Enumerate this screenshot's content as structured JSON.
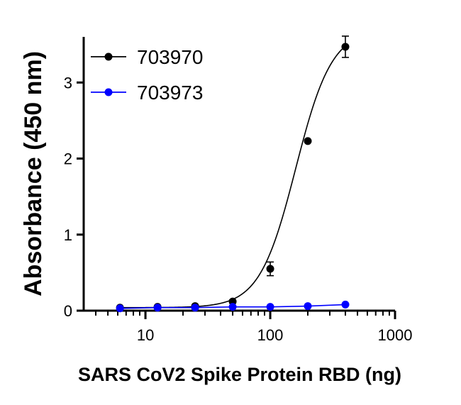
{
  "chart_data": {
    "type": "scatter",
    "xlabel": "SARS CoV2 Spike Protein RBD (ng)",
    "ylabel": "Absorbance (450 nm)",
    "xscale": "log",
    "xlim": [
      3.2,
      1000
    ],
    "ylim": [
      0,
      3.6
    ],
    "xticks": [
      10,
      100,
      1000
    ],
    "xtick_labels": [
      "10",
      "100",
      "1000"
    ],
    "yticks": [
      0,
      1,
      2,
      3
    ],
    "ytick_labels": [
      "0",
      "1",
      "2",
      "3"
    ],
    "grid": false,
    "legend_position": "top-left",
    "series": [
      {
        "name": "703970",
        "color": "#000000",
        "x": [
          6.25,
          12.5,
          25,
          50,
          100,
          200,
          400
        ],
        "y": [
          0.04,
          0.05,
          0.06,
          0.12,
          0.55,
          2.23,
          3.47
        ],
        "yerr": [
          0,
          0,
          0,
          0.02,
          0.09,
          0,
          0.14
        ],
        "fit": "sigmoid"
      },
      {
        "name": "703973",
        "color": "#0000ff",
        "x": [
          6.25,
          12.5,
          25,
          50,
          100,
          200,
          400
        ],
        "y": [
          0.03,
          0.04,
          0.04,
          0.05,
          0.05,
          0.06,
          0.08
        ],
        "yerr": [
          0,
          0,
          0,
          0,
          0,
          0,
          0
        ],
        "fit": "line"
      }
    ]
  }
}
